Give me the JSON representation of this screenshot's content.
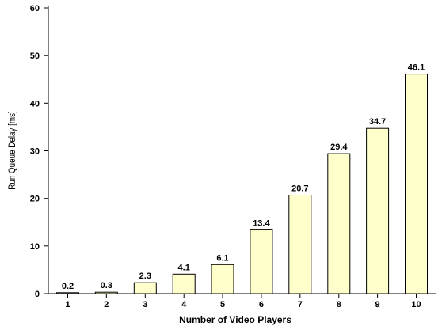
{
  "chart_data": {
    "type": "bar",
    "title": "",
    "xlabel": "Number of Video Players",
    "ylabel": "Run Queue Delay [ms]",
    "categories": [
      "1",
      "2",
      "3",
      "4",
      "5",
      "6",
      "7",
      "8",
      "9",
      "10"
    ],
    "values": [
      0.2,
      0.3,
      2.3,
      4.1,
      6.1,
      13.4,
      20.7,
      29.4,
      34.7,
      46.1
    ],
    "data_labels": [
      "0.2",
      "0.3",
      "2.3",
      "4.1",
      "6.1",
      "13.4",
      "20.7",
      "29.4",
      "34.7",
      "46.1"
    ],
    "ylim": [
      0,
      60
    ],
    "yticks": [
      0,
      10,
      20,
      30,
      40,
      50,
      60
    ],
    "grid": false,
    "legend": "none",
    "bar_fill": "#ffffcc",
    "bar_stroke": "#000000"
  }
}
